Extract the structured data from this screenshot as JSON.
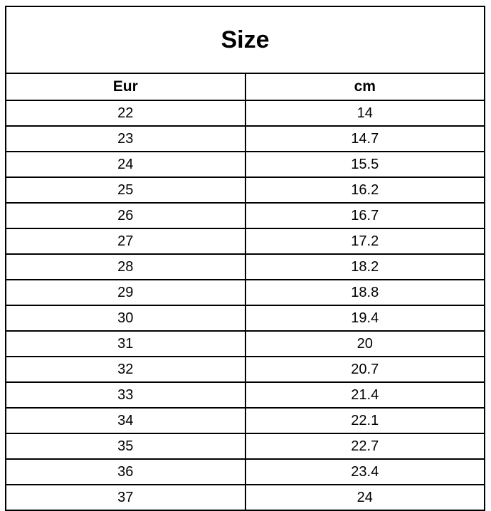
{
  "table": {
    "title": "Size",
    "columns": [
      "Eur",
      "cm"
    ],
    "rows": [
      {
        "eur": "22",
        "cm": "14"
      },
      {
        "eur": "23",
        "cm": "14.7"
      },
      {
        "eur": "24",
        "cm": "15.5"
      },
      {
        "eur": "25",
        "cm": "16.2"
      },
      {
        "eur": "26",
        "cm": "16.7"
      },
      {
        "eur": "27",
        "cm": "17.2"
      },
      {
        "eur": "28",
        "cm": "18.2"
      },
      {
        "eur": "29",
        "cm": "18.8"
      },
      {
        "eur": "30",
        "cm": "19.4"
      },
      {
        "eur": "31",
        "cm": "20"
      },
      {
        "eur": "32",
        "cm": "20.7"
      },
      {
        "eur": "33",
        "cm": "21.4"
      },
      {
        "eur": "34",
        "cm": "22.1"
      },
      {
        "eur": "35",
        "cm": "22.7"
      },
      {
        "eur": "36",
        "cm": "23.4"
      },
      {
        "eur": "37",
        "cm": "24"
      }
    ]
  },
  "colors": {
    "border": "#000000",
    "background": "#ffffff",
    "text": "#000000"
  },
  "chart_data": {
    "type": "table",
    "title": "Size",
    "columns": [
      "Eur",
      "cm"
    ],
    "x": [
      22,
      23,
      24,
      25,
      26,
      27,
      28,
      29,
      30,
      31,
      32,
      33,
      34,
      35,
      36,
      37
    ],
    "series": [
      {
        "name": "cm",
        "values": [
          14,
          14.7,
          15.5,
          16.2,
          16.7,
          17.2,
          18.2,
          18.8,
          19.4,
          20,
          20.7,
          21.4,
          22.1,
          22.7,
          23.4,
          24
        ]
      }
    ],
    "xlabel": "Eur",
    "ylabel": "cm"
  }
}
